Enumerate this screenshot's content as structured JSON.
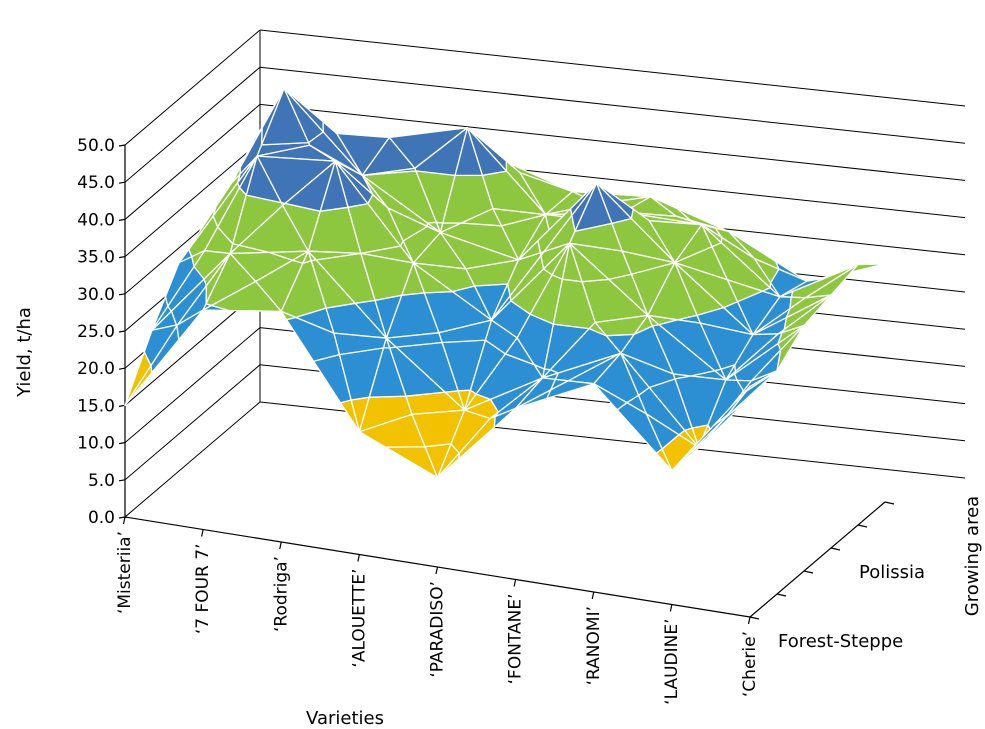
{
  "chart_data": {
    "type": "surface",
    "title": "",
    "xlabel": "Varieties",
    "ylabel": "Yield, t/ha",
    "zlabel": "Growing area",
    "categories": [
      "‘Misteriia’",
      "‘7 FOUR 7’",
      "‘Rodriga’",
      "‘ALOUETTE’",
      "‘PARADISO’",
      "‘FONTANE’",
      "‘RANOMI’",
      "‘LAUDINE’",
      "‘Cherie’"
    ],
    "depth_labels": [
      "Forest-Steppe",
      "",
      "",
      "Polissia",
      "",
      ""
    ],
    "y_ticks": [
      "0.0",
      "5.0",
      "10.0",
      "15.0",
      "20.0",
      "25.0",
      "30.0",
      "35.0",
      "40.0",
      "45.0",
      "50.0"
    ],
    "ylim": [
      0,
      50
    ],
    "band_step": 5,
    "band_colors": [
      "#c8c4c0",
      "#f2c200",
      "#f2c200",
      "#f2c200",
      "#2d8fd3",
      "#2d8fd3",
      "#8dc63f",
      "#8dc63f",
      "#3f74b6",
      "#3f74b6",
      "#c65128",
      "#c65128",
      "#7f7f7f",
      "#cc9a2a"
    ],
    "series": [
      {
        "name": "Forest-Steppe",
        "values": [
          15.0,
          29.5,
          31.0,
          16.5,
          12.0,
          23.0,
          28.0,
          18.0,
          31.0
        ]
      },
      {
        "name": "",
        "values": [
          22.0,
          34.0,
          36.0,
          26.0,
          18.0,
          24.0,
          29.0,
          18.0,
          30.0
        ]
      },
      {
        "name": "",
        "values": [
          28.0,
          44.0,
          45.0,
          33.0,
          27.0,
          39.0,
          31.0,
          24.0,
          33.0
        ]
      },
      {
        "name": "Polissia",
        "values": [
          30.0,
          50.0,
          40.0,
          34.0,
          32.0,
          44.0,
          35.0,
          27.0,
          34.0
        ]
      },
      {
        "name": "",
        "values": [
          28.0,
          41.0,
          42.0,
          45.0,
          35.0,
          37.0,
          37.0,
          29.0,
          35.0
        ]
      },
      {
        "name": "",
        "values": [
          25.0,
          35.0,
          34.0,
          38.0,
          35.0,
          36.0,
          33.0,
          28.0,
          32.0
        ]
      }
    ]
  }
}
